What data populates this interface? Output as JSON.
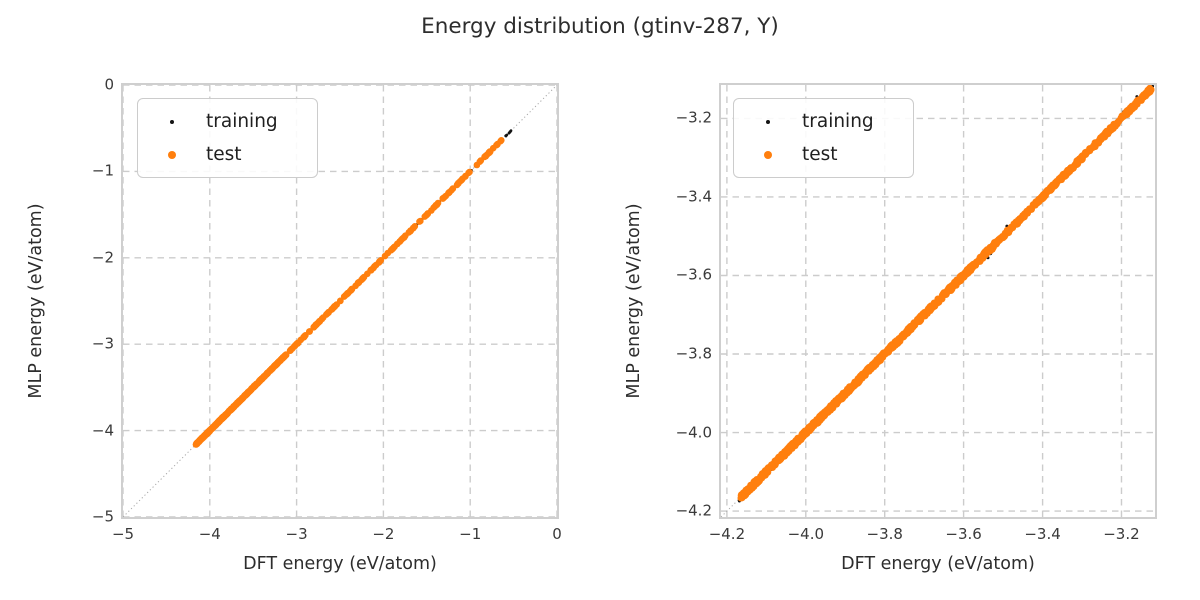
{
  "title": "Energy distribution (gtinv-287, Y)",
  "colors": {
    "training": "#141414",
    "test": "#ff7f0e",
    "grid": "#cccccc",
    "spine": "#cfcfcf",
    "diagonal": "#a8a8a8",
    "text": "#2d2d2d"
  },
  "chart_data": [
    {
      "type": "scatter",
      "title": "",
      "xlabel": "DFT energy (eV/atom)",
      "ylabel": "MLP energy (eV/atom)",
      "xlim": [
        -5,
        0
      ],
      "ylim": [
        -5,
        0
      ],
      "grid": true,
      "diagonal": true,
      "legend_position": "upper left",
      "xticks": [
        {
          "v": -5,
          "label": "−5"
        },
        {
          "v": -4,
          "label": "−4"
        },
        {
          "v": -3,
          "label": "−3"
        },
        {
          "v": -2,
          "label": "−2"
        },
        {
          "v": -1,
          "label": "−1"
        },
        {
          "v": 0,
          "label": "0"
        }
      ],
      "yticks": [
        {
          "v": 0,
          "label": "0"
        },
        {
          "v": -1,
          "label": "−1"
        },
        {
          "v": -2,
          "label": "−2"
        },
        {
          "v": -3,
          "label": "−3"
        },
        {
          "v": -4,
          "label": "−4"
        },
        {
          "v": -5,
          "label": "−5"
        }
      ],
      "series": [
        {
          "name": "training",
          "color": "#141414",
          "marker_px": 2.6,
          "relation": "y = x (MLP energy matches DFT energy along diagonal)",
          "segments": [
            {
              "from": -4.17,
              "to": -3.8,
              "n": 300,
              "jitter": 0.005
            },
            {
              "from": -3.8,
              "to": -3.4,
              "n": 200,
              "jitter": 0.005
            },
            {
              "from": -3.4,
              "to": -3.1,
              "n": 120,
              "jitter": 0.004
            },
            {
              "from": -3.1,
              "to": -2.5,
              "n": 90,
              "jitter": 0.004
            },
            {
              "from": -2.5,
              "to": -1.6,
              "n": 90,
              "jitter": 0.004
            },
            {
              "from": -1.6,
              "to": -0.75,
              "n": 80,
              "jitter": 0.004
            },
            {
              "from": -0.75,
              "to": -0.52,
              "n": 30,
              "jitter": 0.004
            }
          ]
        },
        {
          "name": "test",
          "color": "#ff7f0e",
          "marker_px": 6.6,
          "relation": "y = x (MLP energy matches DFT energy along diagonal)",
          "segments": [
            {
              "from": -4.16,
              "to": -3.8,
              "n": 270,
              "jitter": 0.006
            },
            {
              "from": -3.8,
              "to": -3.4,
              "n": 175,
              "jitter": 0.006
            },
            {
              "from": -3.4,
              "to": -3.12,
              "n": 90,
              "jitter": 0.005
            },
            {
              "from": -3.08,
              "to": -2.55,
              "n": 55,
              "jitter": 0.004
            },
            {
              "from": -2.55,
              "to": -1.7,
              "n": 60,
              "jitter": 0.004
            },
            {
              "from": -1.7,
              "to": -0.9,
              "n": 45,
              "jitter": 0.004
            },
            {
              "from": -0.9,
              "to": -0.62,
              "n": 18,
              "jitter": 0.004
            }
          ]
        }
      ]
    },
    {
      "type": "scatter",
      "title": "",
      "xlabel": "DFT energy (eV/atom)",
      "ylabel": "MLP energy (eV/atom)",
      "xlim": [
        -4.215,
        -3.115
      ],
      "ylim": [
        -4.215,
        -3.115
      ],
      "grid": true,
      "diagonal": true,
      "legend_position": "upper left",
      "xticks": [
        {
          "v": -4.2,
          "label": "−4.2"
        },
        {
          "v": -4.0,
          "label": "−4.0"
        },
        {
          "v": -3.8,
          "label": "−3.8"
        },
        {
          "v": -3.6,
          "label": "−3.6"
        },
        {
          "v": -3.4,
          "label": "−3.4"
        },
        {
          "v": -3.2,
          "label": "−3.2"
        }
      ],
      "yticks": [
        {
          "v": -3.2,
          "label": "−3.2"
        },
        {
          "v": -3.4,
          "label": "−3.4"
        },
        {
          "v": -3.6,
          "label": "−3.6"
        },
        {
          "v": -3.8,
          "label": "−3.8"
        },
        {
          "v": -4.0,
          "label": "−4.0"
        },
        {
          "v": -4.2,
          "label": "−4.2"
        }
      ],
      "series": [
        {
          "name": "training",
          "color": "#141414",
          "marker_px": 3.0,
          "relation": "y = x (MLP energy matches DFT energy along diagonal)",
          "segments": [
            {
              "from": -4.17,
              "to": -3.8,
              "n": 480,
              "jitter": 0.006
            },
            {
              "from": -3.8,
              "to": -3.5,
              "n": 320,
              "jitter": 0.006
            },
            {
              "from": -3.5,
              "to": -3.12,
              "n": 330,
              "jitter": 0.006
            },
            {
              "from": -3.6,
              "to": -3.14,
              "n": 20,
              "jitter": 0.018
            }
          ]
        },
        {
          "name": "test",
          "color": "#ff7f0e",
          "marker_px": 7.0,
          "relation": "y = x (MLP energy matches DFT energy along diagonal)",
          "segments": [
            {
              "from": -4.165,
              "to": -3.8,
              "n": 470,
              "jitter": 0.006
            },
            {
              "from": -3.8,
              "to": -3.5,
              "n": 300,
              "jitter": 0.006
            },
            {
              "from": -3.5,
              "to": -3.3,
              "n": 170,
              "jitter": 0.005
            },
            {
              "from": -3.3,
              "to": -3.125,
              "n": 130,
              "jitter": 0.005
            }
          ]
        }
      ]
    }
  ]
}
